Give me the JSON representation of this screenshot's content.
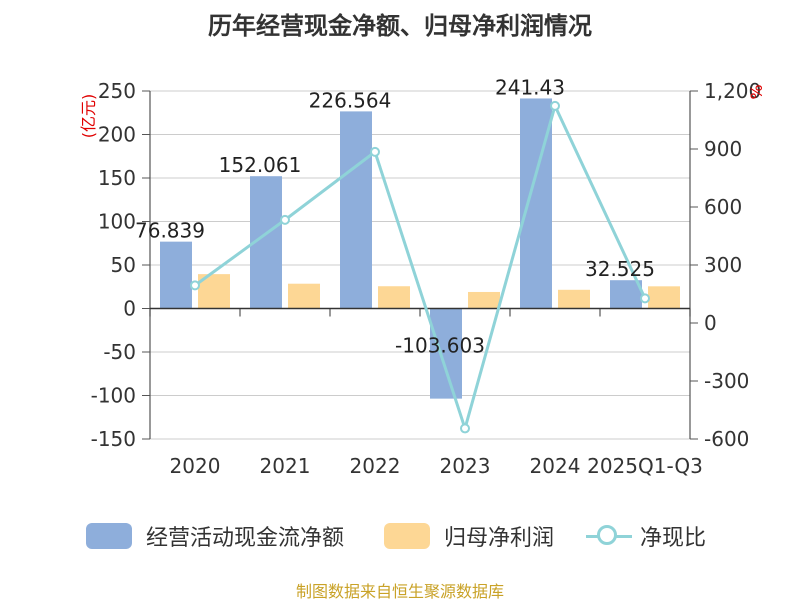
{
  "title": "历年经营现金净额、归母净利润情况",
  "source": "制图数据来自恒生聚源数据库",
  "chart_data": {
    "type": "bar",
    "categories": [
      "2020",
      "2021",
      "2022",
      "2023",
      "2024",
      "2025Q1-Q3"
    ],
    "left_unit": "(亿元)",
    "right_unit": "%",
    "ylim": [
      -150,
      250
    ],
    "yticks": [
      250,
      200,
      150,
      100,
      50,
      0,
      -50,
      -100,
      -150
    ],
    "y2lim": [
      -600,
      1200
    ],
    "y2ticks": [
      "1,200",
      "900",
      "600",
      "300",
      "0",
      "-300",
      "-600"
    ],
    "y2tick_values": [
      1200,
      900,
      600,
      300,
      0,
      -300,
      -600
    ],
    "grid": true,
    "legend_position": "bottom",
    "series": [
      {
        "name": "经营活动现金流净额",
        "type": "bar",
        "axis": "left",
        "color": "#8eaedb",
        "values": [
          76.839,
          152.061,
          226.564,
          -103.603,
          241.43,
          32.525
        ],
        "labels": [
          "76.839",
          "152.061",
          "226.564",
          "-103.603",
          "241.43",
          "32.525"
        ]
      },
      {
        "name": "归母净利润",
        "type": "bar",
        "axis": "left",
        "color": "#fdd795",
        "values": [
          39.5,
          28.5,
          25.6,
          19.0,
          21.5,
          25.5
        ]
      },
      {
        "name": "净现比",
        "type": "line",
        "axis": "right",
        "color": "#8fd3d8",
        "values": [
          194.5,
          533.5,
          885.0,
          -545.3,
          1123.0,
          127.5
        ]
      }
    ]
  }
}
